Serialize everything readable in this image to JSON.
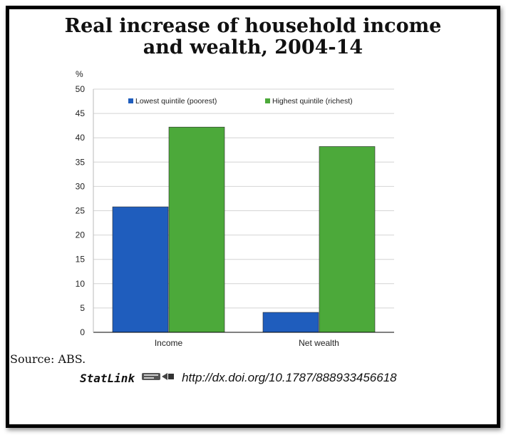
{
  "chart_data": {
    "type": "bar",
    "title_lines": [
      "Real increase of household income",
      "and wealth, 2004-14"
    ],
    "ylabel": "%",
    "ylim": [
      0,
      50
    ],
    "yticks": [
      "0",
      "5",
      "10",
      "15",
      "20",
      "25",
      "30",
      "35",
      "40",
      "45",
      "50"
    ],
    "categories": [
      "Income",
      "Net wealth"
    ],
    "series": [
      {
        "name": "Lowest quintile (poorest)",
        "values": [
          25.8,
          4.1
        ],
        "color": "#1f5dbd"
      },
      {
        "name": "Highest quintile (richest)",
        "values": [
          42.2,
          38.2
        ],
        "color": "#4ca93a"
      }
    ],
    "grid": true,
    "legend_position": "top"
  },
  "footer": {
    "source": "Source:  ABS.",
    "statlink_brand": "StatLink",
    "statlink_icon": "statlink-logo-icon",
    "statlink_url": "http://dx.doi.org/10.1787/888933456618"
  }
}
